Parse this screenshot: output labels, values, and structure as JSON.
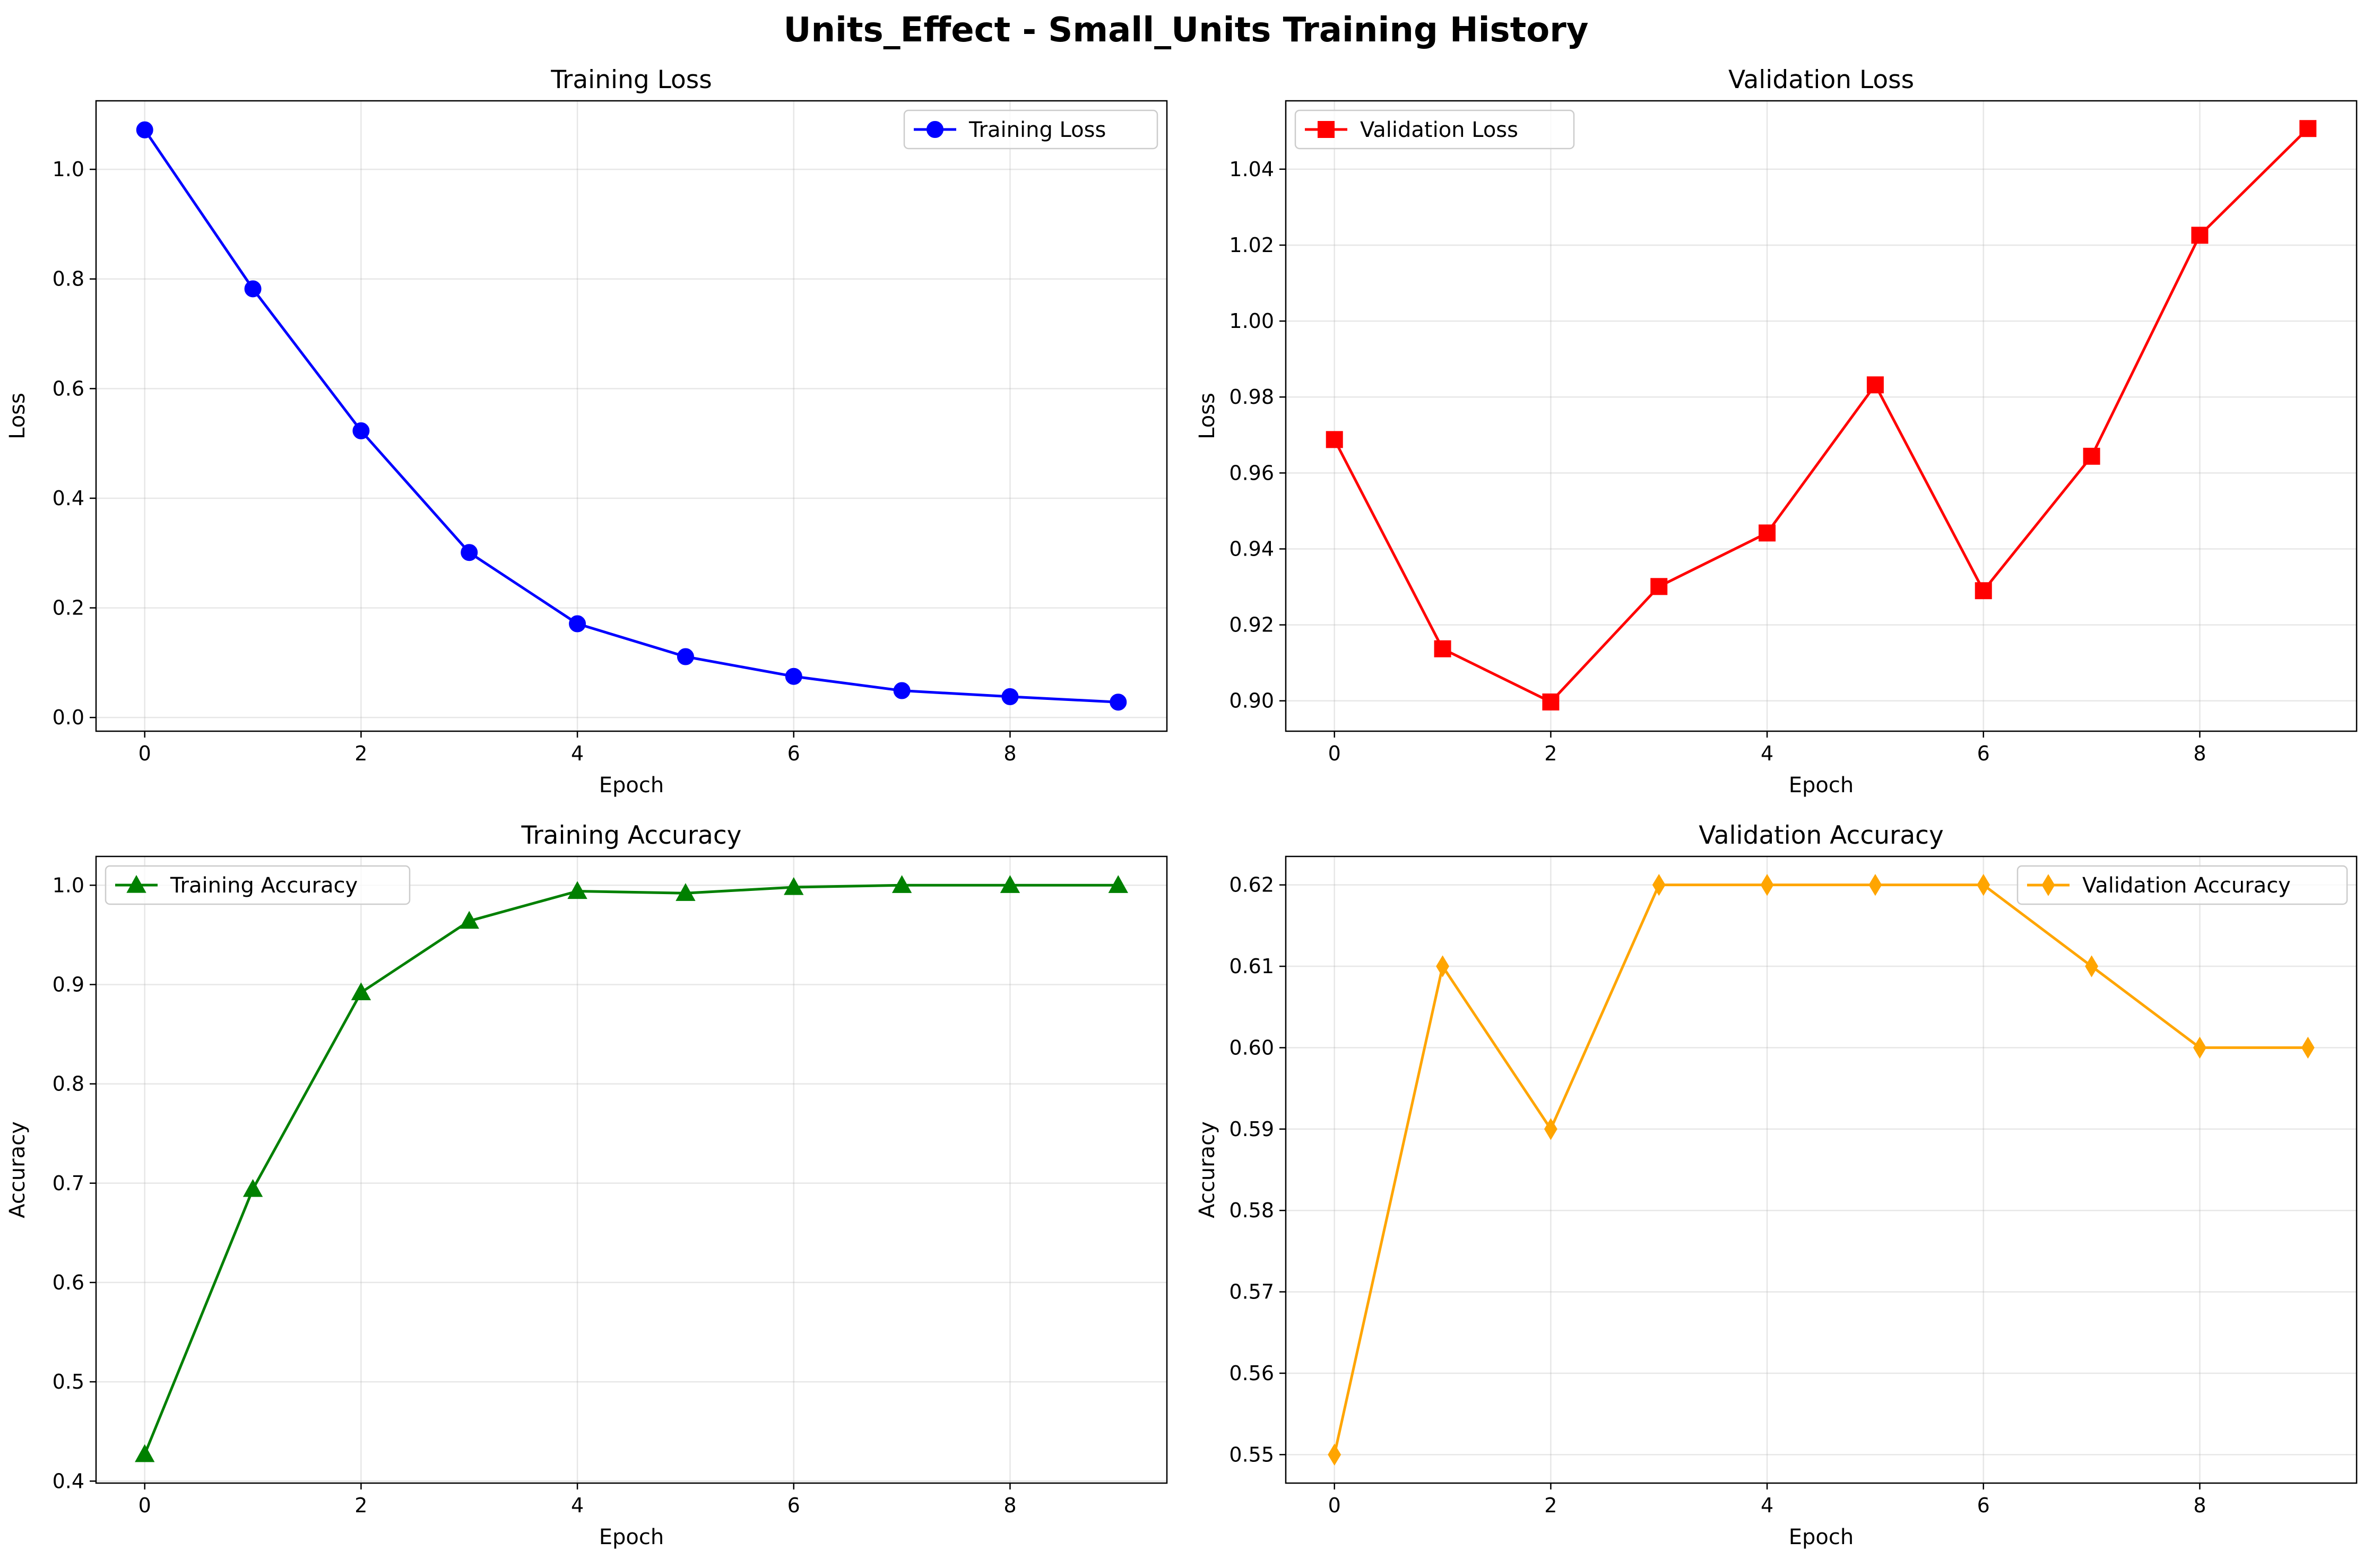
{
  "figure_title": "Units_Effect - Small_Units Training History",
  "chart_data": [
    {
      "type": "line",
      "title": "Training Loss",
      "xlabel": "Epoch",
      "ylabel": "Loss",
      "x": [
        0,
        1,
        2,
        3,
        4,
        5,
        6,
        7,
        8,
        9
      ],
      "series": [
        {
          "name": "Training Loss",
          "color": "#0000ff",
          "marker": "circle",
          "values": [
            1.072,
            0.782,
            0.523,
            0.301,
            0.171,
            0.111,
            0.075,
            0.049,
            0.038,
            0.028
          ]
        }
      ],
      "xlim": [
        -0.45,
        9.45
      ],
      "ylim": [
        -0.025,
        1.125
      ],
      "xticks": [
        0,
        2,
        4,
        6,
        8
      ],
      "xtick_labels": [
        "0",
        "2",
        "4",
        "6",
        "8"
      ],
      "yticks": [
        0.0,
        0.2,
        0.4,
        0.6,
        0.8,
        1.0
      ],
      "ytick_labels": [
        "0.0",
        "0.2",
        "0.4",
        "0.6",
        "0.8",
        "1.0"
      ],
      "grid": true,
      "legend_position": "upper right"
    },
    {
      "type": "line",
      "title": "Validation Loss",
      "xlabel": "Epoch",
      "ylabel": "Loss",
      "x": [
        0,
        1,
        2,
        3,
        4,
        5,
        6,
        7,
        8,
        9
      ],
      "series": [
        {
          "name": "Validation Loss",
          "color": "#ff0000",
          "marker": "square",
          "values": [
            0.9688,
            0.9137,
            0.8997,
            0.9301,
            0.9442,
            0.9832,
            0.929,
            0.9644,
            1.0226,
            1.0507
          ]
        }
      ],
      "xlim": [
        -0.45,
        9.45
      ],
      "ylim": [
        0.892,
        1.058
      ],
      "xticks": [
        0,
        2,
        4,
        6,
        8
      ],
      "xtick_labels": [
        "0",
        "2",
        "4",
        "6",
        "8"
      ],
      "yticks": [
        0.9,
        0.92,
        0.94,
        0.96,
        0.98,
        1.0,
        1.02,
        1.04
      ],
      "ytick_labels": [
        "0.90",
        "0.92",
        "0.94",
        "0.96",
        "0.98",
        "1.00",
        "1.02",
        "1.04"
      ],
      "grid": true,
      "legend_position": "upper left"
    },
    {
      "type": "line",
      "title": "Training Accuracy",
      "xlabel": "Epoch",
      "ylabel": "Accuracy",
      "x": [
        0,
        1,
        2,
        3,
        4,
        5,
        6,
        7,
        8,
        9
      ],
      "series": [
        {
          "name": "Training Accuracy",
          "color": "#008000",
          "marker": "triangle",
          "values": [
            0.427,
            0.694,
            0.892,
            0.964,
            0.994,
            0.992,
            0.998,
            1.0,
            1.0,
            1.0
          ]
        }
      ],
      "xlim": [
        -0.45,
        9.45
      ],
      "ylim": [
        0.398,
        1.029
      ],
      "xticks": [
        0,
        2,
        4,
        6,
        8
      ],
      "xtick_labels": [
        "0",
        "2",
        "4",
        "6",
        "8"
      ],
      "yticks": [
        0.4,
        0.5,
        0.6,
        0.7,
        0.8,
        0.9,
        1.0
      ],
      "ytick_labels": [
        "0.4",
        "0.5",
        "0.6",
        "0.7",
        "0.8",
        "0.9",
        "1.0"
      ],
      "grid": true,
      "legend_position": "upper left"
    },
    {
      "type": "line",
      "title": "Validation Accuracy",
      "xlabel": "Epoch",
      "ylabel": "Accuracy",
      "x": [
        0,
        1,
        2,
        3,
        4,
        5,
        6,
        7,
        8,
        9
      ],
      "series": [
        {
          "name": "Validation Accuracy",
          "color": "#ffa500",
          "marker": "diamond",
          "values": [
            0.55,
            0.61,
            0.59,
            0.62,
            0.62,
            0.62,
            0.62,
            0.61,
            0.6,
            0.6
          ]
        }
      ],
      "xlim": [
        -0.45,
        9.45
      ],
      "ylim": [
        0.5465,
        0.6235
      ],
      "xticks": [
        0,
        2,
        4,
        6,
        8
      ],
      "xtick_labels": [
        "0",
        "2",
        "4",
        "6",
        "8"
      ],
      "yticks": [
        0.55,
        0.56,
        0.57,
        0.58,
        0.59,
        0.6,
        0.61,
        0.62
      ],
      "ytick_labels": [
        "0.55",
        "0.56",
        "0.57",
        "0.58",
        "0.59",
        "0.60",
        "0.61",
        "0.62"
      ],
      "grid": true,
      "legend_position": "upper right"
    }
  ]
}
